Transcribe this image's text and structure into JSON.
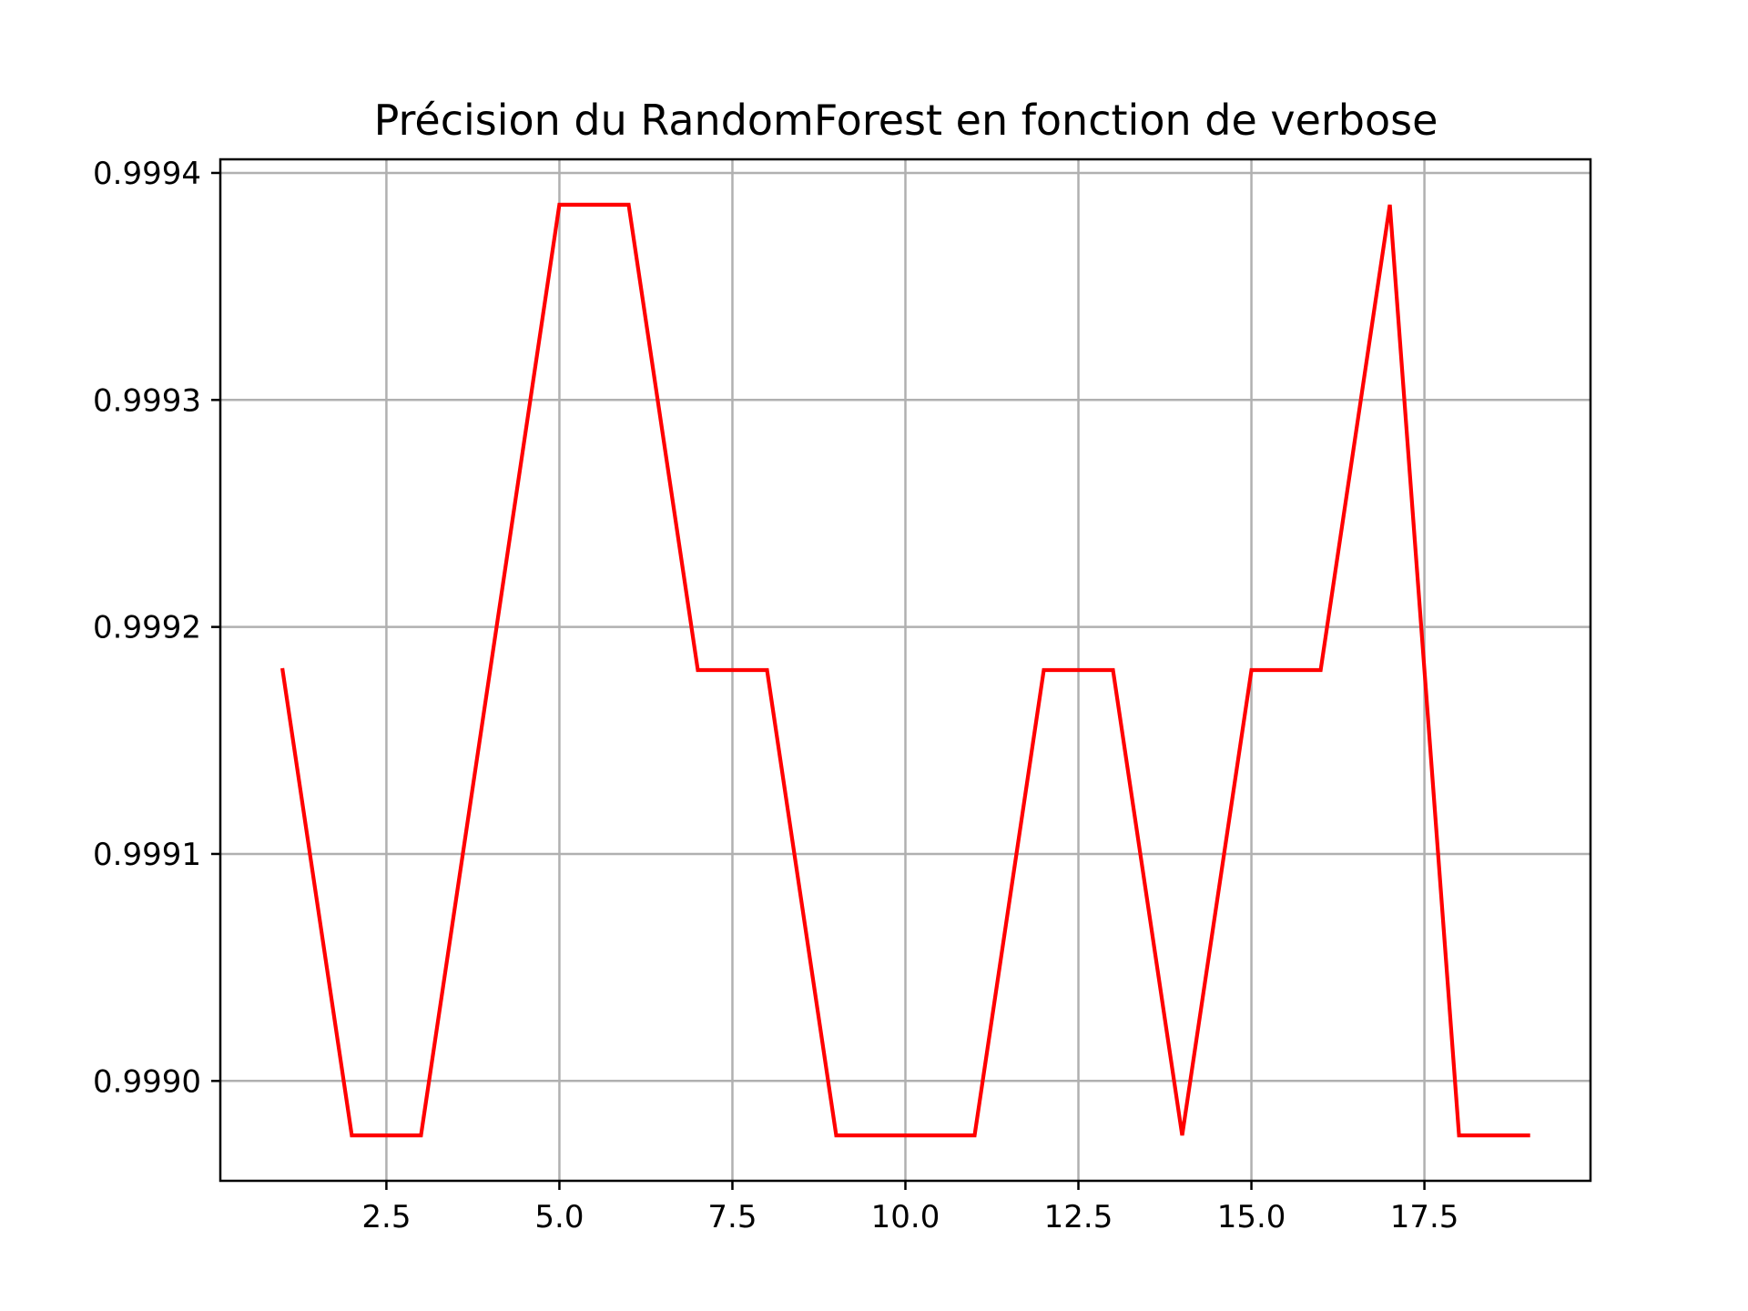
{
  "chart_data": {
    "type": "line",
    "title": "Précision du RandomForest en fonction de verbose",
    "xlabel": "",
    "ylabel": "",
    "xlim": [
      0.1,
      19.9
    ],
    "ylim": [
      0.998956,
      0.999406
    ],
    "x_ticks": [
      2.5,
      5.0,
      7.5,
      10.0,
      12.5,
      15.0,
      17.5
    ],
    "x_tick_labels": [
      "2.5",
      "5.0",
      "7.5",
      "10.0",
      "12.5",
      "15.0",
      "17.5"
    ],
    "y_ticks": [
      0.999,
      0.9991,
      0.9992,
      0.9993,
      0.9994
    ],
    "y_tick_labels": [
      "0.9990",
      "0.9991",
      "0.9992",
      "0.9993",
      "0.9994"
    ],
    "grid": true,
    "series": [
      {
        "color": "#ff0000",
        "x": [
          1,
          2,
          3,
          4,
          5,
          6,
          7,
          8,
          9,
          10,
          11,
          12,
          13,
          14,
          15,
          16,
          17,
          18,
          19
        ],
        "y": [
          0.999181,
          0.998976,
          0.998976,
          0.999181,
          0.999386,
          0.999386,
          0.999181,
          0.999181,
          0.998976,
          0.998976,
          0.998976,
          0.999181,
          0.999181,
          0.998976,
          0.999181,
          0.999181,
          0.999386,
          0.998976,
          0.998976
        ]
      }
    ]
  }
}
